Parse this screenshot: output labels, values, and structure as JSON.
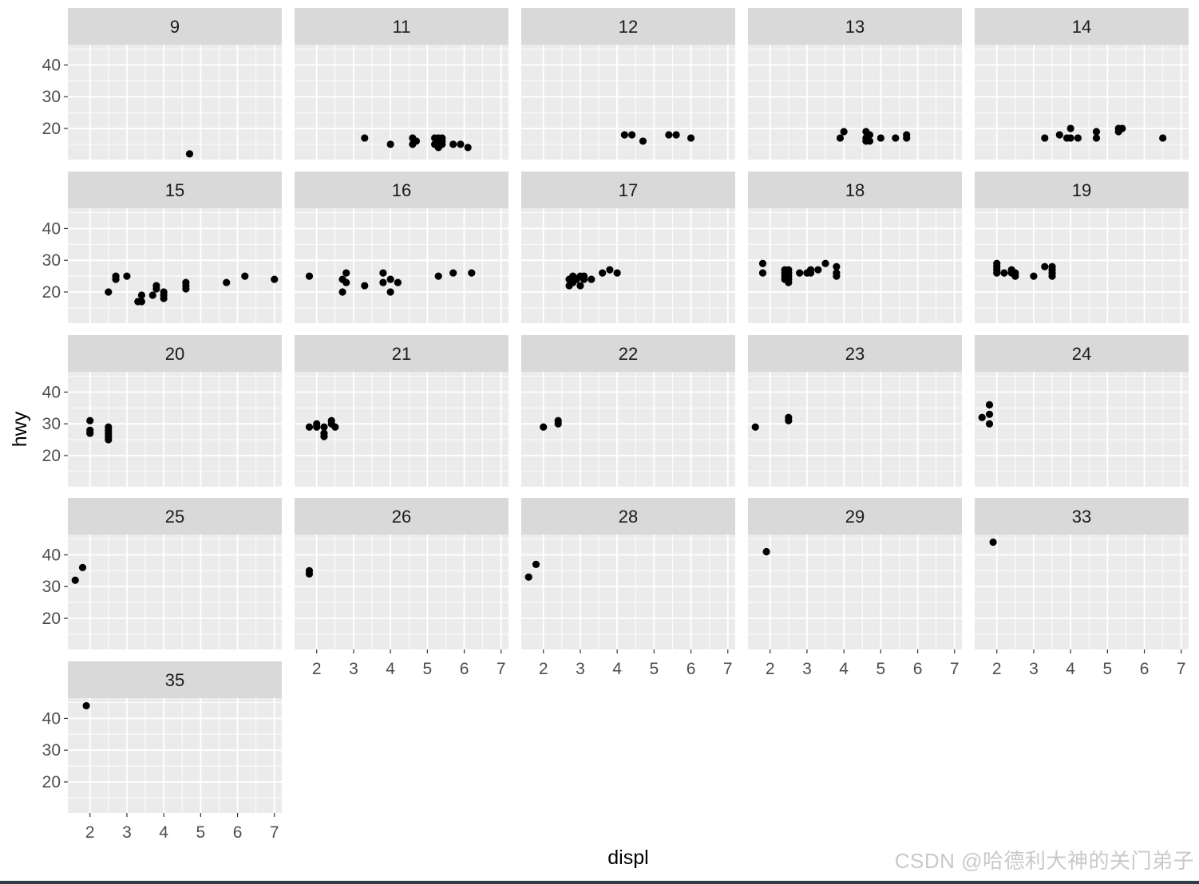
{
  "chart_data": {
    "type": "scatter",
    "facet_by": "cty",
    "xlabel": "displ",
    "ylabel": "hwy",
    "xlim": [
      1.4,
      7.2
    ],
    "ylim": [
      10.2,
      46.4
    ],
    "x_ticks": [
      2,
      3,
      4,
      5,
      6,
      7
    ],
    "y_ticks": [
      20,
      30,
      40
    ],
    "grid": true,
    "point_color": "#000000",
    "panel_background": "#ebebeb",
    "strip_background": "#d9d9d9",
    "panels": [
      {
        "label": "9",
        "points": [
          [
            4.7,
            12
          ]
        ]
      },
      {
        "label": "11",
        "points": [
          [
            3.3,
            17
          ],
          [
            4.0,
            15
          ],
          [
            4.6,
            17
          ],
          [
            4.6,
            15
          ],
          [
            4.7,
            16
          ],
          [
            5.2,
            17
          ],
          [
            5.2,
            15
          ],
          [
            5.3,
            17
          ],
          [
            5.3,
            16
          ],
          [
            5.3,
            15
          ],
          [
            5.3,
            14
          ],
          [
            5.4,
            17
          ],
          [
            5.4,
            16
          ],
          [
            5.4,
            15
          ],
          [
            5.7,
            15
          ],
          [
            5.9,
            15
          ],
          [
            6.1,
            14
          ]
        ]
      },
      {
        "label": "12",
        "points": [
          [
            4.2,
            18
          ],
          [
            4.4,
            18
          ],
          [
            4.7,
            16
          ],
          [
            5.4,
            18
          ],
          [
            5.6,
            18
          ],
          [
            6.0,
            17
          ]
        ]
      },
      {
        "label": "13",
        "points": [
          [
            3.9,
            17
          ],
          [
            4.0,
            19
          ],
          [
            4.6,
            19
          ],
          [
            4.6,
            17
          ],
          [
            4.6,
            16
          ],
          [
            4.7,
            18
          ],
          [
            4.7,
            16
          ],
          [
            5.0,
            17
          ],
          [
            5.4,
            17
          ],
          [
            5.7,
            18
          ],
          [
            5.7,
            17
          ]
        ]
      },
      {
        "label": "14",
        "points": [
          [
            3.3,
            17
          ],
          [
            3.7,
            18
          ],
          [
            3.9,
            17
          ],
          [
            4.0,
            20
          ],
          [
            4.0,
            17
          ],
          [
            4.2,
            17
          ],
          [
            4.7,
            19
          ],
          [
            4.7,
            17
          ],
          [
            5.3,
            20
          ],
          [
            5.3,
            19
          ],
          [
            5.4,
            20
          ],
          [
            6.5,
            17
          ]
        ]
      },
      {
        "label": "15",
        "points": [
          [
            2.5,
            20
          ],
          [
            2.7,
            25
          ],
          [
            2.7,
            24
          ],
          [
            3.0,
            25
          ],
          [
            3.3,
            17
          ],
          [
            3.4,
            19
          ],
          [
            3.4,
            17
          ],
          [
            3.7,
            19
          ],
          [
            3.8,
            22
          ],
          [
            3.8,
            21
          ],
          [
            4.0,
            20
          ],
          [
            4.0,
            19
          ],
          [
            4.0,
            18
          ],
          [
            4.6,
            23
          ],
          [
            4.6,
            22
          ],
          [
            4.6,
            21
          ],
          [
            5.7,
            23
          ],
          [
            6.2,
            25
          ],
          [
            7.0,
            24
          ]
        ]
      },
      {
        "label": "16",
        "points": [
          [
            1.8,
            25
          ],
          [
            2.7,
            24
          ],
          [
            2.7,
            20
          ],
          [
            2.8,
            26
          ],
          [
            2.8,
            23
          ],
          [
            3.3,
            22
          ],
          [
            3.8,
            26
          ],
          [
            3.8,
            23
          ],
          [
            4.0,
            24
          ],
          [
            4.0,
            20
          ],
          [
            4.2,
            23
          ],
          [
            5.3,
            25
          ],
          [
            5.7,
            26
          ],
          [
            6.2,
            26
          ]
        ]
      },
      {
        "label": "17",
        "points": [
          [
            2.7,
            24
          ],
          [
            2.7,
            22
          ],
          [
            2.8,
            25
          ],
          [
            2.8,
            23
          ],
          [
            2.9,
            24
          ],
          [
            3.0,
            25
          ],
          [
            3.0,
            22
          ],
          [
            3.1,
            25
          ],
          [
            3.1,
            24
          ],
          [
            3.3,
            24
          ],
          [
            3.6,
            26
          ],
          [
            3.8,
            27
          ],
          [
            4.0,
            26
          ]
        ]
      },
      {
        "label": "18",
        "points": [
          [
            1.8,
            29
          ],
          [
            1.8,
            26
          ],
          [
            2.4,
            27
          ],
          [
            2.4,
            26
          ],
          [
            2.4,
            25
          ],
          [
            2.4,
            24
          ],
          [
            2.5,
            27
          ],
          [
            2.5,
            26
          ],
          [
            2.5,
            25
          ],
          [
            2.5,
            24
          ],
          [
            2.5,
            23
          ],
          [
            2.8,
            26
          ],
          [
            3.0,
            26
          ],
          [
            3.1,
            27
          ],
          [
            3.1,
            26
          ],
          [
            3.3,
            27
          ],
          [
            3.5,
            29
          ],
          [
            3.8,
            28
          ],
          [
            3.8,
            26
          ],
          [
            3.8,
            25
          ]
        ]
      },
      {
        "label": "19",
        "points": [
          [
            2.0,
            29
          ],
          [
            2.0,
            28
          ],
          [
            2.0,
            27
          ],
          [
            2.0,
            26
          ],
          [
            2.2,
            26
          ],
          [
            2.4,
            27
          ],
          [
            2.4,
            26
          ],
          [
            2.5,
            26
          ],
          [
            2.5,
            25
          ],
          [
            3.0,
            25
          ],
          [
            3.3,
            28
          ],
          [
            3.5,
            28
          ],
          [
            3.5,
            27
          ],
          [
            3.5,
            26
          ],
          [
            3.5,
            25
          ]
        ]
      },
      {
        "label": "20",
        "points": [
          [
            2.0,
            31
          ],
          [
            2.0,
            28
          ],
          [
            2.0,
            27
          ],
          [
            2.5,
            29
          ],
          [
            2.5,
            28
          ],
          [
            2.5,
            27
          ],
          [
            2.5,
            26
          ],
          [
            2.5,
            25
          ]
        ]
      },
      {
        "label": "21",
        "points": [
          [
            1.8,
            29
          ],
          [
            2.0,
            30
          ],
          [
            2.0,
            29
          ],
          [
            2.2,
            29
          ],
          [
            2.2,
            27
          ],
          [
            2.2,
            26
          ],
          [
            2.4,
            31
          ],
          [
            2.4,
            30
          ],
          [
            2.5,
            29
          ]
        ]
      },
      {
        "label": "22",
        "points": [
          [
            2.0,
            29
          ],
          [
            2.4,
            31
          ],
          [
            2.4,
            30
          ]
        ]
      },
      {
        "label": "23",
        "points": [
          [
            1.6,
            29
          ],
          [
            2.5,
            32
          ],
          [
            2.5,
            31
          ]
        ]
      },
      {
        "label": "24",
        "points": [
          [
            1.6,
            32
          ],
          [
            1.8,
            36
          ],
          [
            1.8,
            33
          ],
          [
            1.8,
            30
          ]
        ]
      },
      {
        "label": "25",
        "points": [
          [
            1.6,
            32
          ],
          [
            1.8,
            36
          ]
        ]
      },
      {
        "label": "26",
        "points": [
          [
            1.8,
            35
          ],
          [
            1.8,
            34
          ]
        ]
      },
      {
        "label": "28",
        "points": [
          [
            1.6,
            33
          ],
          [
            1.8,
            37
          ]
        ]
      },
      {
        "label": "29",
        "points": [
          [
            1.9,
            41
          ]
        ]
      },
      {
        "label": "33",
        "points": [
          [
            1.9,
            44
          ]
        ]
      },
      {
        "label": "35",
        "points": [
          [
            1.9,
            44
          ]
        ]
      }
    ]
  },
  "watermark": "CSDN @哈德利大神的关门弟子"
}
